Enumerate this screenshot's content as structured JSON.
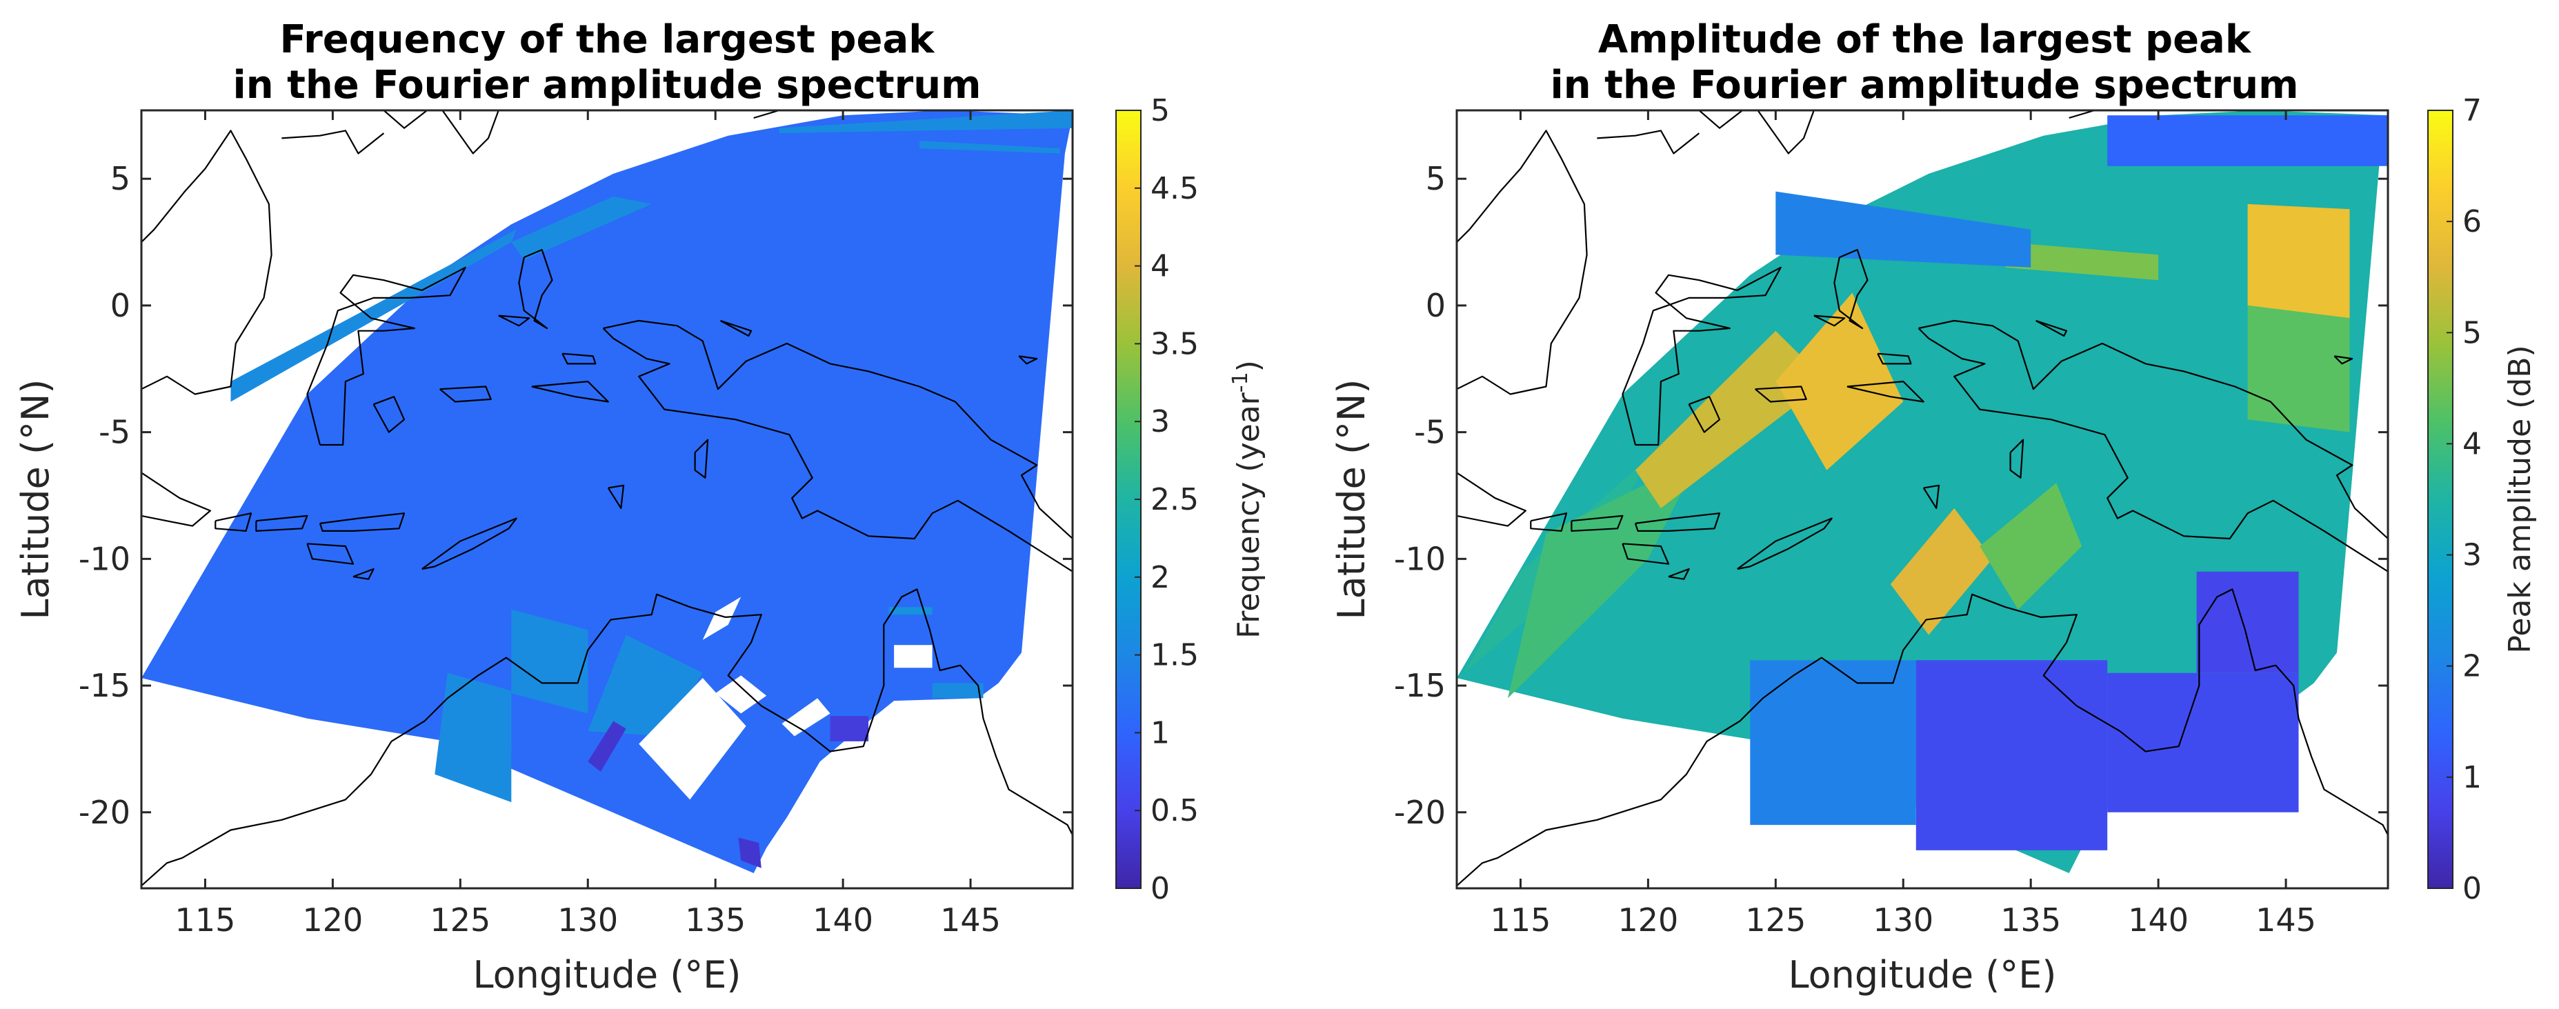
{
  "chart_data": [
    {
      "type": "heatmap",
      "title_lines": [
        "Frequency of the largest peak",
        "in the Fourier amplitude spectrum"
      ],
      "xlabel": "Longitude (°E)",
      "ylabel": "Latitude (°N)",
      "xlim": [
        112.5,
        149
      ],
      "ylim": [
        -23,
        7.7
      ],
      "xticks": [
        115,
        120,
        125,
        130,
        135,
        140,
        145
      ],
      "yticks": [
        5,
        0,
        -5,
        -10,
        -15,
        -20
      ],
      "grid": false,
      "colorbar": {
        "label_main": "Frequency (year",
        "label_sup": "-1",
        "label_end": ")",
        "range": [
          0,
          5
        ],
        "ticks": [
          "0",
          "0.5",
          "1",
          "1.5",
          "2",
          "2.5",
          "3",
          "3.5",
          "4",
          "4.5",
          "5"
        ]
      },
      "domain": {
        "lon_min": 112.5,
        "lon_max": 149,
        "lat_bottom_left": -14.7,
        "lat_top": 7.7
      },
      "background_value": 1.1,
      "patches": [
        {
          "lon": [
            124.0,
            127.0,
            127.0,
            124.5
          ],
          "lat": [
            -18.5,
            -19.6,
            -15.2,
            -14.5
          ],
          "value": 1.6
        },
        {
          "lon": [
            127.0,
            130.0,
            130.0,
            127.0
          ],
          "lat": [
            -15.3,
            -16.1,
            -12.8,
            -12.0
          ],
          "value": 1.6
        },
        {
          "lon": [
            130.0,
            133.0,
            134.5,
            131.5
          ],
          "lat": [
            -16.8,
            -17.0,
            -14.5,
            -13.0
          ],
          "value": 1.6
        },
        {
          "lon": [
            130.5,
            131.5,
            131.0,
            130.0
          ],
          "lat": [
            -18.4,
            -16.7,
            -16.4,
            -18.0
          ],
          "value": 0.3
        },
        {
          "lon": [
            132.0,
            134.0,
            136.2,
            134.5
          ],
          "lat": [
            -17.3,
            -19.5,
            -16.6,
            -14.7
          ],
          "value": "none"
        },
        {
          "lon": [
            134.5,
            135.5,
            136.0,
            135.0
          ],
          "lat": [
            -13.2,
            -12.6,
            -11.5,
            -12.1
          ],
          "value": "none"
        },
        {
          "lon": [
            135.0,
            136.0,
            137.0,
            136.0
          ],
          "lat": [
            -15.3,
            -14.6,
            -15.4,
            -16.1
          ],
          "value": "none"
        },
        {
          "lon": [
            137.6,
            139.0,
            139.5,
            138.1
          ],
          "lat": [
            -16.5,
            -15.5,
            -16.1,
            -17.0
          ],
          "value": "none"
        },
        {
          "lon": [
            141.8,
            143.5,
            143.5,
            141.8
          ],
          "lat": [
            -12.2,
            -12.2,
            -11.9,
            -11.9
          ],
          "value": 1.7
        },
        {
          "lon": [
            142.0,
            143.5,
            143.5,
            142.0
          ],
          "lat": [
            -14.3,
            -14.3,
            -13.4,
            -13.4
          ],
          "value": "none"
        },
        {
          "lon": [
            136.0,
            136.8,
            136.7,
            135.9
          ],
          "lat": [
            -21.9,
            -22.2,
            -21.2,
            -21.0
          ],
          "value": 0.3
        },
        {
          "lon": [
            139.5,
            141.0,
            141.0,
            139.5
          ],
          "lat": [
            -17.2,
            -17.2,
            -16.2,
            -16.2
          ],
          "value": 0.4
        },
        {
          "lon": [
            143.5,
            145.5,
            145.5,
            143.5
          ],
          "lat": [
            -15.5,
            -15.5,
            -14.9,
            -14.9
          ],
          "value": 1.6
        },
        {
          "lon": [
            116.0,
            127.0,
            127.2,
            116.0
          ],
          "lat": [
            -3.8,
            2.5,
            3.0,
            -3.0
          ],
          "value": 1.6
        },
        {
          "lon": [
            127.0,
            131.0,
            132.5,
            127.5
          ],
          "lat": [
            2.5,
            4.3,
            4.0,
            1.8
          ],
          "value": 1.6
        },
        {
          "lon": [
            137.5,
            149.0,
            149.0,
            137.5
          ],
          "lat": [
            6.8,
            7.0,
            7.7,
            7.0
          ],
          "value": 1.6
        },
        {
          "lon": [
            143.0,
            148.5,
            148.5,
            143.0
          ],
          "lat": [
            6.2,
            6.0,
            6.2,
            6.5
          ],
          "value": 1.6
        }
      ]
    },
    {
      "type": "heatmap",
      "title_lines": [
        "Amplitude of the largest peak",
        "in the Fourier amplitude spectrum"
      ],
      "xlabel": "Longitude (°E)",
      "ylabel": "Latitude (°N)",
      "xlim": [
        112.5,
        149
      ],
      "ylim": [
        -23,
        7.7
      ],
      "xticks": [
        115,
        120,
        125,
        130,
        135,
        140,
        145
      ],
      "yticks": [
        5,
        0,
        -5,
        -10,
        -15,
        -20
      ],
      "grid": false,
      "colorbar": {
        "label_main": "Peak amplitude (dB)",
        "label_sup": "",
        "label_end": "",
        "range": [
          0,
          7
        ],
        "ticks": [
          "0",
          "1",
          "2",
          "3",
          "4",
          "5",
          "6",
          "7"
        ]
      },
      "domain": {
        "lon_min": 112.5,
        "lon_max": 149,
        "lat_bottom_left": -14.7,
        "lat_top": 7.7
      },
      "background_value": 3.4,
      "patches": [
        {
          "lon": [
            112.8,
            118.0,
            120.0,
            115.0
          ],
          "lat": [
            -14.5,
            -10.0,
            -6.0,
            -10.5
          ],
          "value": 3.6
        },
        {
          "lon": [
            114.5,
            120.0,
            122.0,
            116.0
          ],
          "lat": [
            -15.5,
            -10.0,
            -6.0,
            -9.0
          ],
          "value": 4.0
        },
        {
          "lon": [
            119.5,
            125.0,
            127.0,
            120.5
          ],
          "lat": [
            -6.5,
            -1.0,
            -3.0,
            -8.0
          ],
          "value": 5.4
        },
        {
          "lon": [
            125.0,
            128.0,
            130.0,
            127.0
          ],
          "lat": [
            -3.0,
            0.5,
            -3.8,
            -6.5
          ],
          "value": 5.8
        },
        {
          "lon": [
            129.5,
            132.0,
            133.5,
            131.0
          ],
          "lat": [
            -11.0,
            -8.0,
            -10.0,
            -13.0
          ],
          "value": 5.6
        },
        {
          "lon": [
            133.0,
            136.0,
            137.0,
            134.5
          ],
          "lat": [
            -9.5,
            -7.0,
            -9.5,
            -12.0
          ],
          "value": 4.4
        },
        {
          "lon": [
            143.5,
            147.5,
            147.5,
            143.5
          ],
          "lat": [
            4.0,
            3.8,
            -0.5,
            0.0
          ],
          "value": 5.9
        },
        {
          "lon": [
            143.5,
            147.5,
            147.5,
            143.5
          ],
          "lat": [
            0.0,
            -0.5,
            -5.0,
            -4.5
          ],
          "value": 4.3
        },
        {
          "lon": [
            130.5,
            138.0,
            138.0,
            130.5
          ],
          "lat": [
            -14.0,
            -14.0,
            -21.5,
            -21.5
          ],
          "value": 0.9
        },
        {
          "lon": [
            138.0,
            145.5,
            145.5,
            138.0
          ],
          "lat": [
            -14.5,
            -14.5,
            -20.0,
            -20.0
          ],
          "value": 0.9
        },
        {
          "lon": [
            141.5,
            145.5,
            145.5,
            141.5
          ],
          "lat": [
            -10.5,
            -10.5,
            -14.5,
            -14.5
          ],
          "value": 0.8
        },
        {
          "lon": [
            124.0,
            130.5,
            130.5,
            124.0
          ],
          "lat": [
            -14.0,
            -14.0,
            -20.5,
            -20.5
          ],
          "value": 2.0
        },
        {
          "lon": [
            134.0,
            140.0,
            140.0,
            134.0
          ],
          "lat": [
            2.5,
            2.0,
            1.0,
            1.5
          ],
          "value": 4.6
        },
        {
          "lon": [
            138.0,
            149.0,
            149.0,
            138.0
          ],
          "lat": [
            7.5,
            7.5,
            5.5,
            5.5
          ],
          "value": 1.4
        },
        {
          "lon": [
            125.0,
            135.0,
            135.0,
            125.0
          ],
          "lat": [
            4.5,
            3.0,
            1.5,
            2.0
          ],
          "value": 2.0
        }
      ]
    }
  ]
}
